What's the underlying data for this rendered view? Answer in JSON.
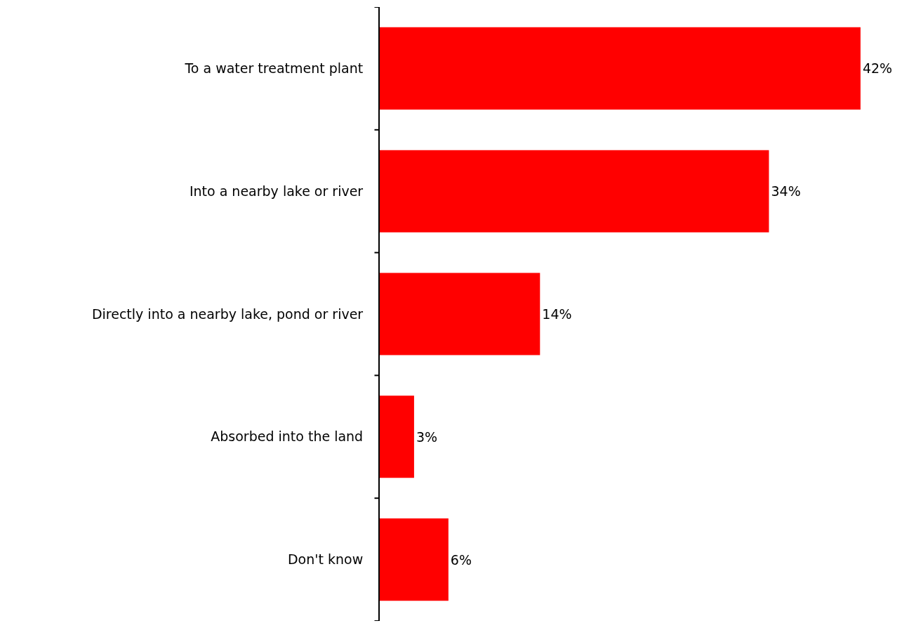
{
  "chart_data": {
    "type": "bar",
    "orientation": "horizontal",
    "categories": [
      "To a water treatment plant",
      "Into a nearby lake or river",
      "Directly into a nearby lake, pond or river",
      "Absorbed into the land",
      "Don't know"
    ],
    "values": [
      42,
      34,
      14,
      3,
      6
    ],
    "value_labels": [
      "42%",
      "34%",
      "14%",
      "3%",
      "6%"
    ],
    "color": "#ff0000",
    "legend": false,
    "tick_labels": "y"
  }
}
